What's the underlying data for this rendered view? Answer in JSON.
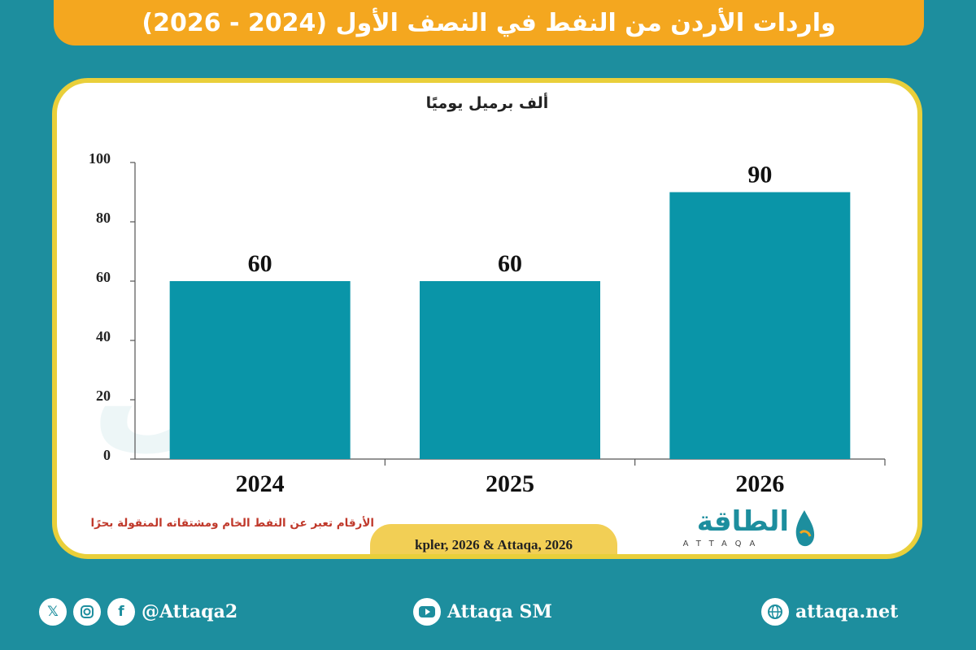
{
  "header": {
    "title": "واردات الأردن من النفط في النصف الأول (2024 - 2026)"
  },
  "chart_data": {
    "type": "bar",
    "unit_label": "ألف برميل يوميًا",
    "categories": [
      "2024",
      "2025",
      "2026"
    ],
    "values": [
      60,
      60,
      90
    ],
    "data_labels": [
      "60",
      "60",
      "90"
    ],
    "ylim": [
      0,
      100
    ],
    "yticks": [
      "0",
      "20",
      "40",
      "60",
      "80",
      "100"
    ],
    "bar_color": "#0a95a8",
    "grid": false
  },
  "footnote": "الأرقام تعبر عن النفط الخام ومشتقاته المنقولة بحرًا",
  "source": "kpler, 2026 & Attaqa, 2026",
  "logo": {
    "arabic": "الطاقة",
    "english": "ATTAQA"
  },
  "footer": {
    "social_handle": "@Attaqa2",
    "youtube": "Attaqa SM",
    "website": "attaqa.net"
  },
  "colors": {
    "background": "#1d8e9e",
    "title_bar": "#f4a71f",
    "card_border": "#e9cf3a",
    "source_tab": "#f2cf55",
    "footnote": "#c0392b"
  }
}
